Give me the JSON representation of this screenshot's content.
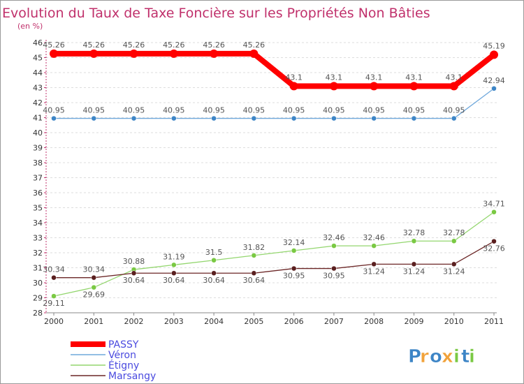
{
  "chart_data": {
    "type": "line",
    "title": "Evolution du Taux de Taxe Foncière sur les Propriétés Non Bâties",
    "subtitle": "(en %)",
    "xlabel": "",
    "ylabel": "",
    "categories": [
      "2000",
      "2001",
      "2002",
      "2003",
      "2004",
      "2005",
      "2006",
      "2007",
      "2008",
      "2009",
      "2010",
      "2011"
    ],
    "ylim": [
      28,
      46
    ],
    "yticks": [
      28,
      29,
      30,
      31,
      32,
      33,
      34,
      35,
      36,
      37,
      38,
      39,
      40,
      41,
      42,
      43,
      44,
      45,
      46
    ],
    "grid": "horizontal-dashed",
    "legend_position": "bottom-left",
    "series": [
      {
        "name": "PASSY",
        "color": "#ff0000",
        "stroke": "thick",
        "values": [
          45.26,
          45.26,
          45.26,
          45.26,
          45.26,
          45.26,
          43.1,
          43.1,
          43.1,
          43.1,
          43.1,
          45.19
        ],
        "labels": [
          "45.26",
          "45.26",
          "45.26",
          "45.26",
          "45.26",
          "45.26",
          "43.1",
          "43.1",
          "43.1",
          "43.1",
          "43.1",
          "45.19"
        ]
      },
      {
        "name": "Véron",
        "color": "#6fa8dc",
        "marker": "#3d85c6",
        "stroke": "thin",
        "values": [
          40.95,
          40.95,
          40.95,
          40.95,
          40.95,
          40.95,
          40.95,
          40.95,
          40.95,
          40.95,
          40.95,
          42.94
        ],
        "labels": [
          "40.95",
          "40.95",
          "40.95",
          "40.95",
          "40.95",
          "40.95",
          "40.95",
          "40.95",
          "40.95",
          "40.95",
          "40.95",
          "42.94"
        ]
      },
      {
        "name": "Étigny",
        "color": "#93d66e",
        "marker": "#7ac943",
        "stroke": "thin",
        "values": [
          29.11,
          29.69,
          30.88,
          31.19,
          31.5,
          31.82,
          32.14,
          32.46,
          32.46,
          32.78,
          32.78,
          34.71
        ],
        "labels": [
          "29.11",
          "29.69",
          "30.88",
          "31.19",
          "31.5",
          "31.82",
          "32.14",
          "32.46",
          "32.46",
          "32.78",
          "32.78",
          "34.71"
        ]
      },
      {
        "name": "Marsangy",
        "color": "#6b2626",
        "marker": "#5a1f1f",
        "stroke": "thin",
        "values": [
          30.34,
          30.34,
          30.64,
          30.64,
          30.64,
          30.64,
          30.95,
          30.95,
          31.24,
          31.24,
          31.24,
          32.76
        ],
        "labels": [
          "30.34",
          "30.34",
          "30.64",
          "30.64",
          "30.64",
          "30.64",
          "30.95",
          "30.95",
          "31.24",
          "31.24",
          "31.24",
          "32.76"
        ]
      }
    ]
  },
  "branding": {
    "logo_letters": [
      "P",
      "r",
      "o",
      "x",
      "i",
      "t",
      "i"
    ],
    "logo_colors": [
      "#3d85c6",
      "#f1a23a",
      "#3d85c6",
      "#f1a23a",
      "#7ac943",
      "#3d85c6",
      "#7ac943"
    ]
  }
}
